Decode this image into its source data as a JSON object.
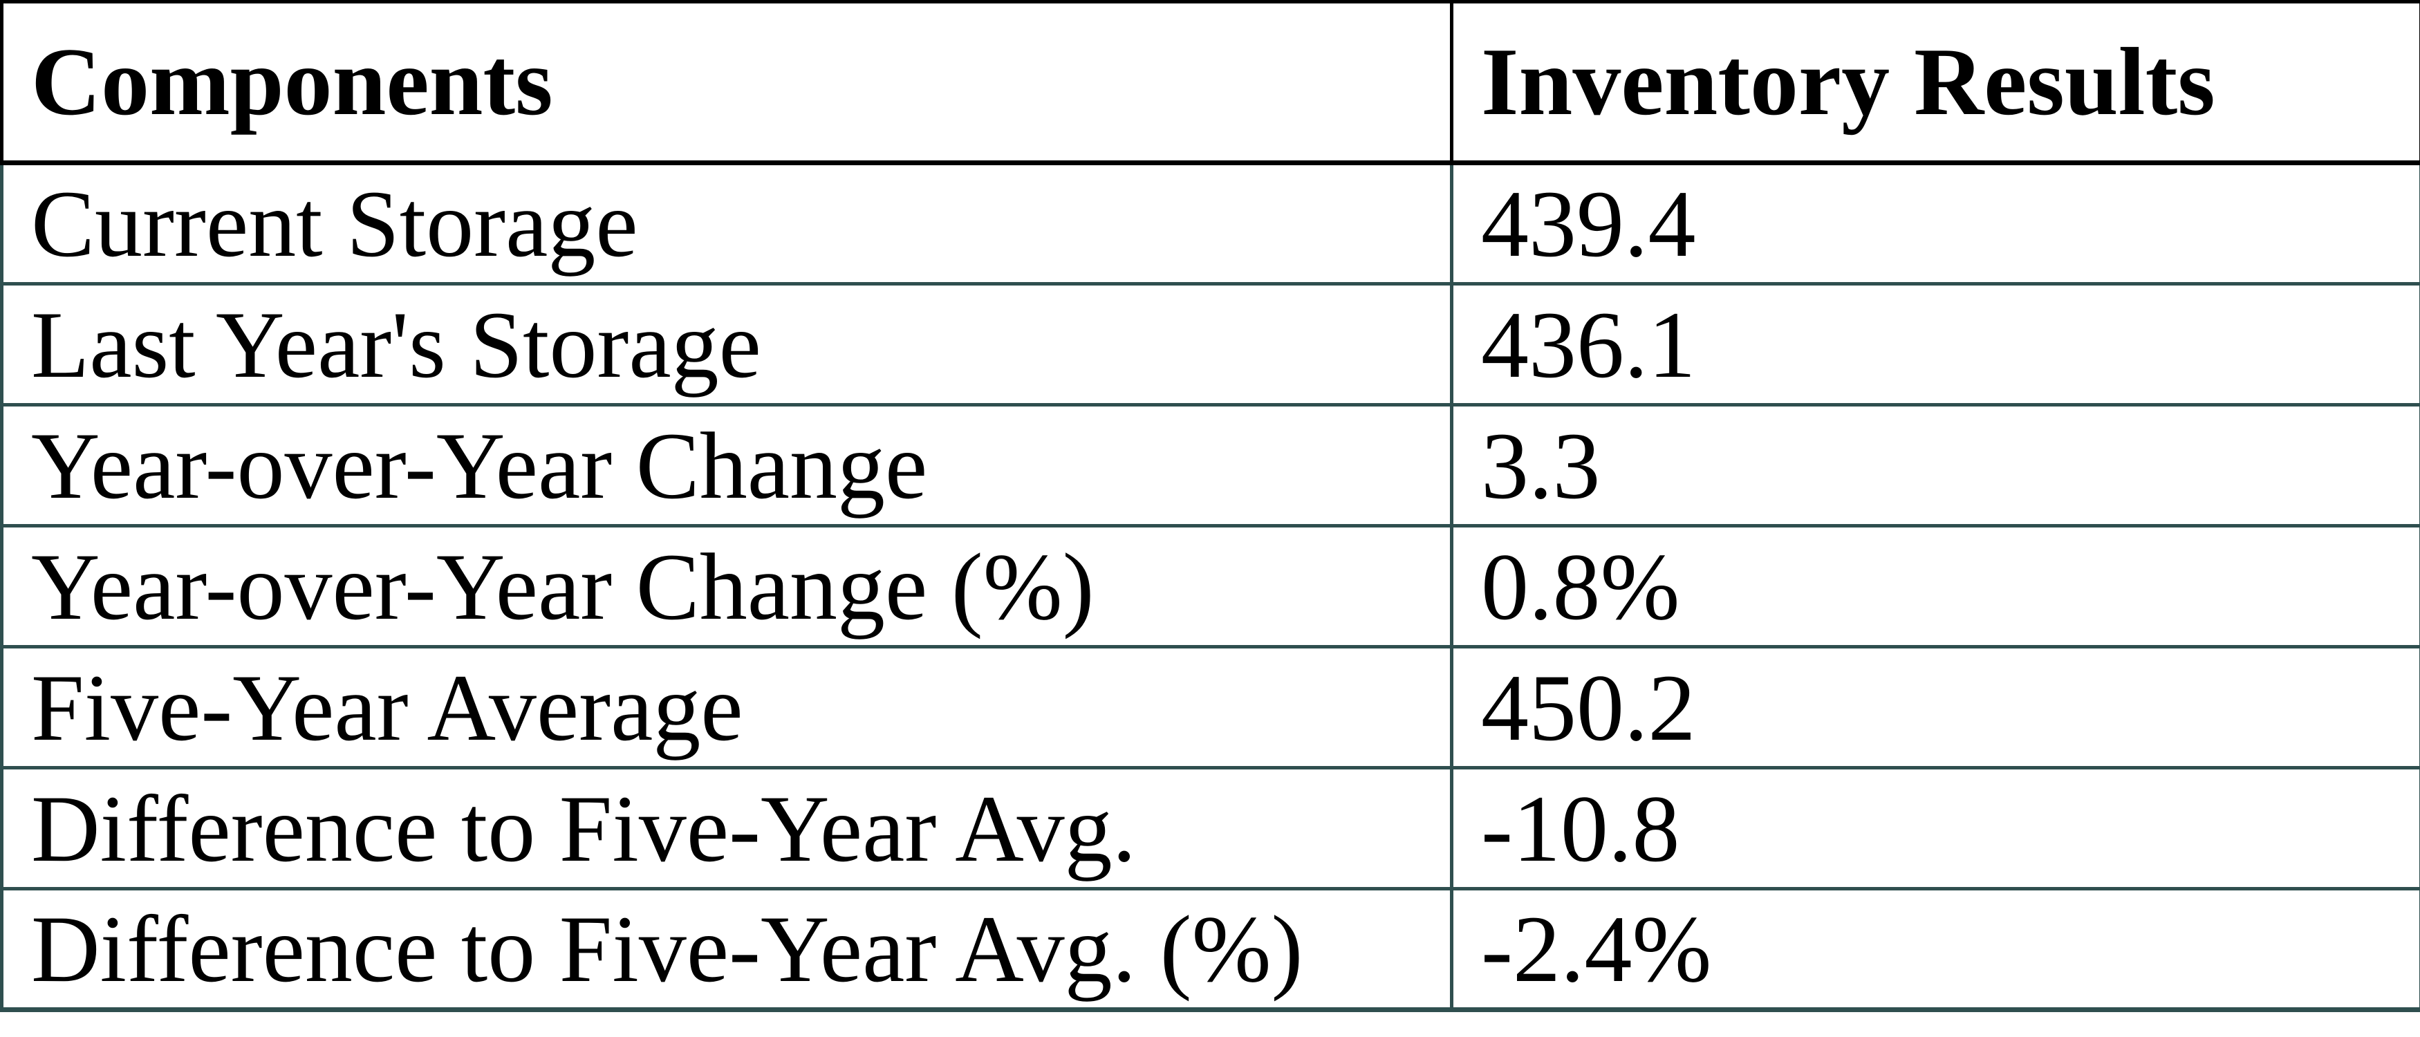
{
  "colors": {
    "header-border": "#000000",
    "body-border": "#2f4f4f",
    "text": "#000000",
    "background": "#ffffff"
  },
  "table": {
    "header": {
      "components": "Components",
      "results": "Inventory Results"
    },
    "rows": [
      {
        "label": "Current Storage",
        "value": "439.4"
      },
      {
        "label": "Last Year's Storage",
        "value": "436.1"
      },
      {
        "label": "Year-over-Year Change",
        "value": "3.3"
      },
      {
        "label": "Year-over-Year Change (%)",
        "value": "0.8%"
      },
      {
        "label": "Five-Year Average",
        "value": "450.2"
      },
      {
        "label": "Difference to Five-Year Avg.",
        "value": "-10.8"
      },
      {
        "label": "Difference to Five-Year Avg. (%)",
        "value": "-2.4%"
      }
    ]
  },
  "chart_data": {
    "type": "table",
    "title": "",
    "columns": [
      "Components",
      "Inventory Results"
    ],
    "rows": [
      [
        "Current Storage",
        439.4
      ],
      [
        "Last Year's Storage",
        436.1
      ],
      [
        "Year-over-Year Change",
        3.3
      ],
      [
        "Year-over-Year Change (%)",
        "0.8%"
      ],
      [
        "Five-Year Average",
        450.2
      ],
      [
        "Difference to Five-Year Avg.",
        -10.8
      ],
      [
        "Difference to Five-Year Avg. (%)",
        "-2.4%"
      ]
    ],
    "layout_hints": {
      "header_border_color": "#000000",
      "body_border_color": "#2f4f4f",
      "grid": true
    }
  }
}
